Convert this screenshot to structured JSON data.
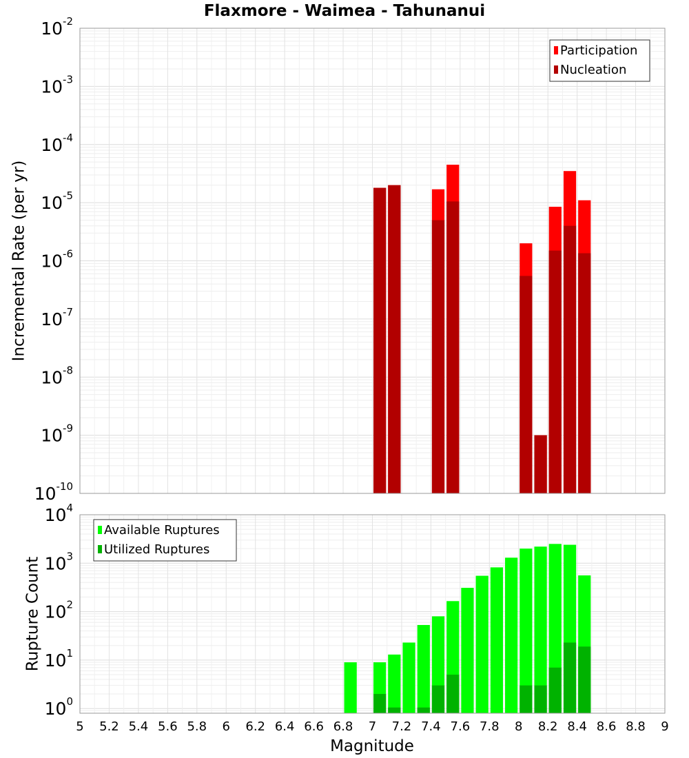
{
  "chart_data": {
    "title": "Flaxmore - Waimea - Tahunanui",
    "xlabel": "Magnitude",
    "xlim": [
      5,
      9
    ],
    "x_ticks": [
      "5",
      "5.2",
      "5.4",
      "5.6",
      "5.8",
      "6",
      "6.2",
      "6.4",
      "6.6",
      "6.8",
      "7",
      "7.2",
      "7.4",
      "7.6",
      "7.8",
      "8",
      "8.2",
      "8.4",
      "8.6",
      "8.8",
      "9"
    ],
    "bin_width": 0.1,
    "grid": true,
    "panels": [
      {
        "type": "bar",
        "scale": "log",
        "ylabel": "Incremental Rate (per yr)",
        "ylim": [
          1e-10,
          0.01
        ],
        "y_tick_base": "10",
        "y_tick_exponents": [
          "-10",
          "-9",
          "-8",
          "-7",
          "-6",
          "-5",
          "-4",
          "-3",
          "-2"
        ],
        "legend_position": "top-right",
        "series": [
          {
            "name": "Participation",
            "color": "#ff0000",
            "points": [
              {
                "x": 7.05,
                "y": 1.8e-05
              },
              {
                "x": 7.15,
                "y": 2e-05
              },
              {
                "x": 7.45,
                "y": 1.7e-05
              },
              {
                "x": 7.55,
                "y": 4.5e-05
              },
              {
                "x": 8.05,
                "y": 2e-06
              },
              {
                "x": 8.15,
                "y": 1e-09
              },
              {
                "x": 8.25,
                "y": 8.5e-06
              },
              {
                "x": 8.35,
                "y": 3.5e-05
              },
              {
                "x": 8.45,
                "y": 1.1e-05
              }
            ]
          },
          {
            "name": "Nucleation",
            "color": "#b20000",
            "points": [
              {
                "x": 7.05,
                "y": 1.8e-05
              },
              {
                "x": 7.15,
                "y": 2e-05
              },
              {
                "x": 7.45,
                "y": 5e-06
              },
              {
                "x": 7.55,
                "y": 1.05e-05
              },
              {
                "x": 8.05,
                "y": 5.5e-07
              },
              {
                "x": 8.15,
                "y": 1e-09
              },
              {
                "x": 8.25,
                "y": 1.5e-06
              },
              {
                "x": 8.35,
                "y": 4e-06
              },
              {
                "x": 8.45,
                "y": 1.35e-06
              }
            ]
          }
        ]
      },
      {
        "type": "bar",
        "scale": "log",
        "ylabel": "Rupture Count",
        "ylim": [
          0.8,
          10000
        ],
        "y_tick_base": "10",
        "y_tick_exponents": [
          "0",
          "1",
          "2",
          "3",
          "4"
        ],
        "legend_position": "top-left",
        "series": [
          {
            "name": "Available Ruptures",
            "color": "#00ff00",
            "points": [
              {
                "x": 6.85,
                "y": 9
              },
              {
                "x": 7.05,
                "y": 9
              },
              {
                "x": 7.15,
                "y": 13
              },
              {
                "x": 7.25,
                "y": 23
              },
              {
                "x": 7.35,
                "y": 53
              },
              {
                "x": 7.45,
                "y": 80
              },
              {
                "x": 7.55,
                "y": 165
              },
              {
                "x": 7.65,
                "y": 310
              },
              {
                "x": 7.75,
                "y": 550
              },
              {
                "x": 7.85,
                "y": 820
              },
              {
                "x": 7.95,
                "y": 1300
              },
              {
                "x": 8.05,
                "y": 2000
              },
              {
                "x": 8.15,
                "y": 2200
              },
              {
                "x": 8.25,
                "y": 2500
              },
              {
                "x": 8.35,
                "y": 2400
              },
              {
                "x": 8.45,
                "y": 560
              }
            ]
          },
          {
            "name": "Utilized Ruptures",
            "color": "#00b200",
            "points": [
              {
                "x": 7.05,
                "y": 2
              },
              {
                "x": 7.15,
                "y": 1.05
              },
              {
                "x": 7.35,
                "y": 1.05
              },
              {
                "x": 7.45,
                "y": 3
              },
              {
                "x": 7.55,
                "y": 5
              },
              {
                "x": 8.05,
                "y": 3
              },
              {
                "x": 8.15,
                "y": 3
              },
              {
                "x": 8.25,
                "y": 7
              },
              {
                "x": 8.35,
                "y": 23
              },
              {
                "x": 8.45,
                "y": 19
              }
            ]
          }
        ]
      }
    ]
  }
}
